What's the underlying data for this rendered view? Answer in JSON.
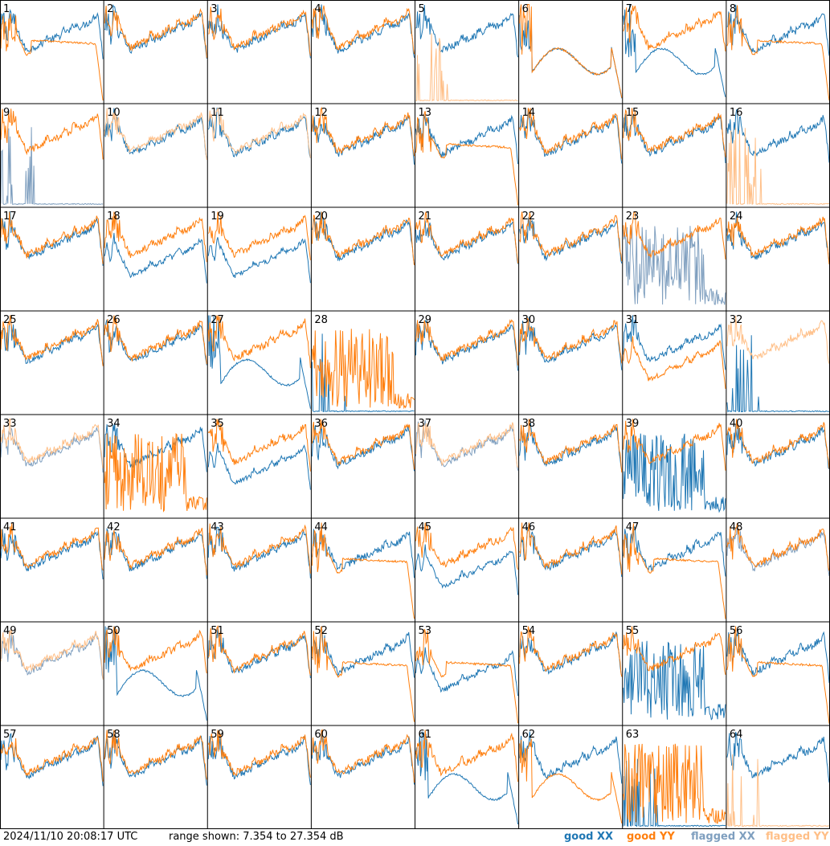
{
  "chart_data": {
    "type": "line",
    "layout": "8x8 small multiples",
    "panels": [
      "1",
      "2",
      "3",
      "4",
      "5",
      "6",
      "7",
      "8",
      "9",
      "10",
      "11",
      "12",
      "13",
      "14",
      "15",
      "16",
      "17",
      "18",
      "19",
      "20",
      "21",
      "22",
      "23",
      "24",
      "25",
      "26",
      "27",
      "28",
      "29",
      "30",
      "31",
      "32",
      "33",
      "34",
      "35",
      "36",
      "37",
      "38",
      "39",
      "40",
      "41",
      "42",
      "43",
      "44",
      "45",
      "46",
      "47",
      "48",
      "49",
      "50",
      "51",
      "52",
      "53",
      "54",
      "55",
      "56",
      "57",
      "58",
      "59",
      "60",
      "61",
      "62",
      "63",
      "64"
    ],
    "ylim": [
      7.354,
      27.354
    ],
    "series_styles": [
      {
        "name": "good XX",
        "color": "#1f77b4"
      },
      {
        "name": "good YY",
        "color": "#ff7f0e"
      },
      {
        "name": "flagged XX",
        "color": "#7f9fbf"
      },
      {
        "name": "flagged YY",
        "color": "#ffbf87"
      }
    ],
    "panel_modes": {
      "xx": [
        "normal",
        "normal",
        "normal",
        "normal",
        "normal",
        "dip",
        "dip",
        "normal",
        "flat",
        "normal",
        "normal",
        "normal",
        "normal",
        "normal",
        "normal",
        "normal",
        "normal",
        "low",
        "low",
        "normal",
        "normal",
        "normal",
        "spiky",
        "normal",
        "normal",
        "normal",
        "dip",
        "flat",
        "normal",
        "normal",
        "normal",
        "flat",
        "normal",
        "normal",
        "low",
        "normal",
        "normal",
        "normal",
        "spiky",
        "normal",
        "normal",
        "normal",
        "normal",
        "normal",
        "low",
        "normal",
        "normal",
        "normal",
        "normal",
        "dip",
        "normal",
        "normal",
        "low",
        "normal",
        "spiky",
        "normal",
        "normal",
        "normal",
        "normal",
        "normal",
        "dip",
        "normal",
        "flat",
        "normal"
      ],
      "yy": [
        "rolloff",
        "normal",
        "normal",
        "normal",
        "flat",
        "dip",
        "normal",
        "rolloff",
        "normal",
        "normal",
        "normal",
        "normal",
        "rolloff",
        "normal",
        "normal",
        "flat",
        "normal",
        "normal",
        "normal",
        "normal",
        "normal",
        "normal",
        "normal",
        "normal",
        "normal",
        "normal",
        "normal",
        "spiky",
        "normal",
        "normal",
        "low",
        "normal",
        "normal",
        "spiky",
        "normal",
        "normal",
        "normal",
        "normal",
        "normal",
        "normal",
        "normal",
        "normal",
        "normal",
        "rolloff",
        "normal",
        "normal",
        "rolloff",
        "normal",
        "normal",
        "normal",
        "normal",
        "rolloff",
        "rolloff",
        "normal",
        "normal",
        "rolloff",
        "normal",
        "normal",
        "normal",
        "normal",
        "normal",
        "dip",
        "spiky",
        "flat"
      ]
    },
    "flagged_xx_panels": [
      "9",
      "23",
      "33",
      "37",
      "48",
      "49"
    ],
    "flagged_yy_panels": [
      "5",
      "10",
      "11",
      "16",
      "32",
      "33",
      "37",
      "49",
      "64"
    ]
  },
  "footer": {
    "timestamp": "2024/11/10 20:08:17 UTC",
    "range_text": "range shown: 7.354 to 27.354 dB",
    "legend": [
      "good XX",
      "good YY",
      "flagged XX",
      "flagged YY"
    ]
  },
  "colors": {
    "good_xx": "#1f77b4",
    "good_yy": "#ff7f0e",
    "flagged_xx": "#7f9fbf",
    "flagged_yy": "#ffbf87",
    "grid_lines": "#000000"
  }
}
